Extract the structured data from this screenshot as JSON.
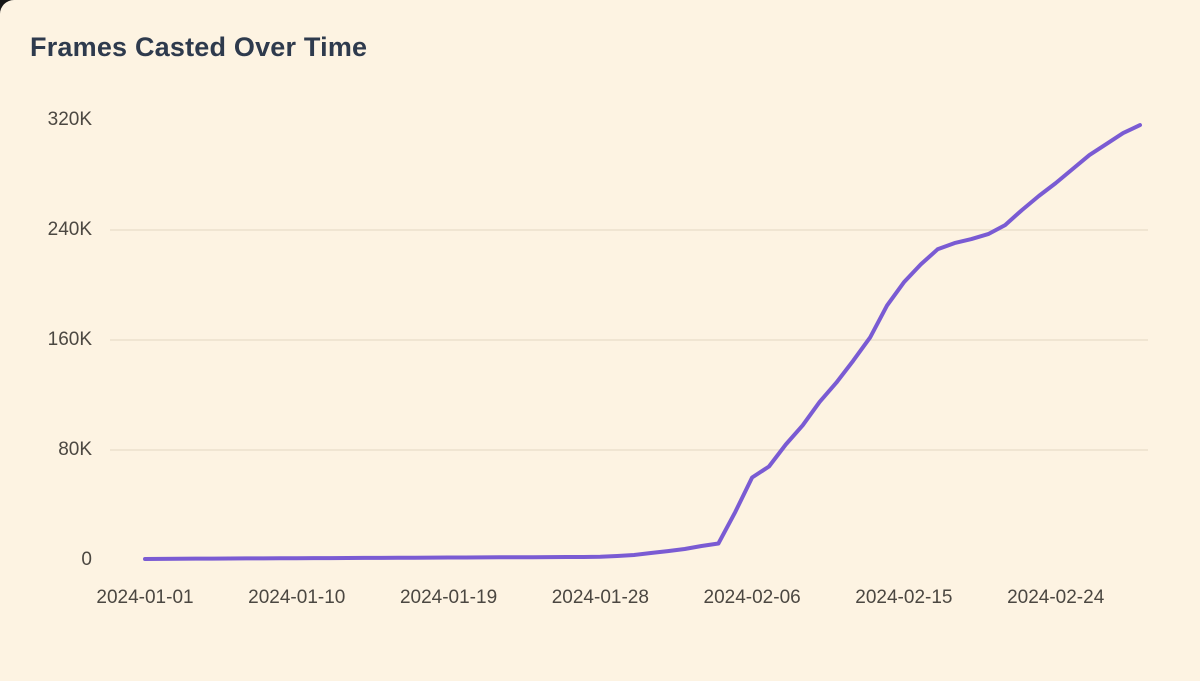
{
  "page": {
    "behind_color": "#161616",
    "card_background": "#FDF3E2"
  },
  "colors": {
    "background": "#FDF3E2",
    "line": "#7A5BD3",
    "title": "#2E3A4D",
    "axis_label": "#4B4741",
    "gridline": "rgba(146,126,96,0.16)"
  },
  "chart_data": {
    "type": "line",
    "title": "Frames Casted Over Time",
    "series_name": "Frames Casted",
    "line_color": "#7A5BD3",
    "legend": "none",
    "grid": "horizontal-faint",
    "xlabel": "",
    "ylabel": "",
    "ylim": [
      0,
      320000
    ],
    "y_ticks": [
      {
        "label": "320K",
        "value": 320000
      },
      {
        "label": "240K",
        "value": 240000
      },
      {
        "label": "160K",
        "value": 160000
      },
      {
        "label": "80K",
        "value": 80000
      },
      {
        "label": "0",
        "value": 0
      }
    ],
    "grid_values": [
      80000,
      160000,
      240000
    ],
    "x_tick_indices": [
      0,
      9,
      18,
      27,
      36,
      45,
      54
    ],
    "x_tick_labels": [
      "2024-01-01",
      "2024-01-10",
      "2024-01-19",
      "2024-01-28",
      "2024-02-06",
      "2024-02-15",
      "2024-02-24"
    ],
    "x": [
      "2024-01-01",
      "2024-01-02",
      "2024-01-03",
      "2024-01-04",
      "2024-01-05",
      "2024-01-06",
      "2024-01-07",
      "2024-01-08",
      "2024-01-09",
      "2024-01-10",
      "2024-01-11",
      "2024-01-12",
      "2024-01-13",
      "2024-01-14",
      "2024-01-15",
      "2024-01-16",
      "2024-01-17",
      "2024-01-18",
      "2024-01-19",
      "2024-01-20",
      "2024-01-21",
      "2024-01-22",
      "2024-01-23",
      "2024-01-24",
      "2024-01-25",
      "2024-01-26",
      "2024-01-27",
      "2024-01-28",
      "2024-01-29",
      "2024-01-30",
      "2024-01-31",
      "2024-02-01",
      "2024-02-02",
      "2024-02-03",
      "2024-02-04",
      "2024-02-05",
      "2024-02-06",
      "2024-02-07",
      "2024-02-08",
      "2024-02-09",
      "2024-02-10",
      "2024-02-11",
      "2024-02-12",
      "2024-02-13",
      "2024-02-14",
      "2024-02-15",
      "2024-02-16",
      "2024-02-17",
      "2024-02-18",
      "2024-02-19",
      "2024-02-20",
      "2024-02-21",
      "2024-02-22",
      "2024-02-23",
      "2024-02-24",
      "2024-02-25",
      "2024-02-26",
      "2024-02-27",
      "2024-02-28",
      "2024-02-29"
    ],
    "values": [
      700,
      800,
      900,
      1000,
      1050,
      1100,
      1150,
      1200,
      1250,
      1300,
      1350,
      1400,
      1450,
      1500,
      1550,
      1650,
      1700,
      1750,
      1800,
      1850,
      1900,
      1950,
      2000,
      2050,
      2100,
      2150,
      2200,
      2400,
      2900,
      3600,
      5100,
      6500,
      8000,
      10200,
      12000,
      35000,
      60000,
      68000,
      84000,
      98000,
      115000,
      129000,
      145000,
      162000,
      185000,
      202000,
      215000,
      226000,
      230500,
      233400,
      237000,
      243600,
      254500,
      264700,
      274100,
      284300,
      294500,
      302500,
      310500,
      316300
    ]
  }
}
